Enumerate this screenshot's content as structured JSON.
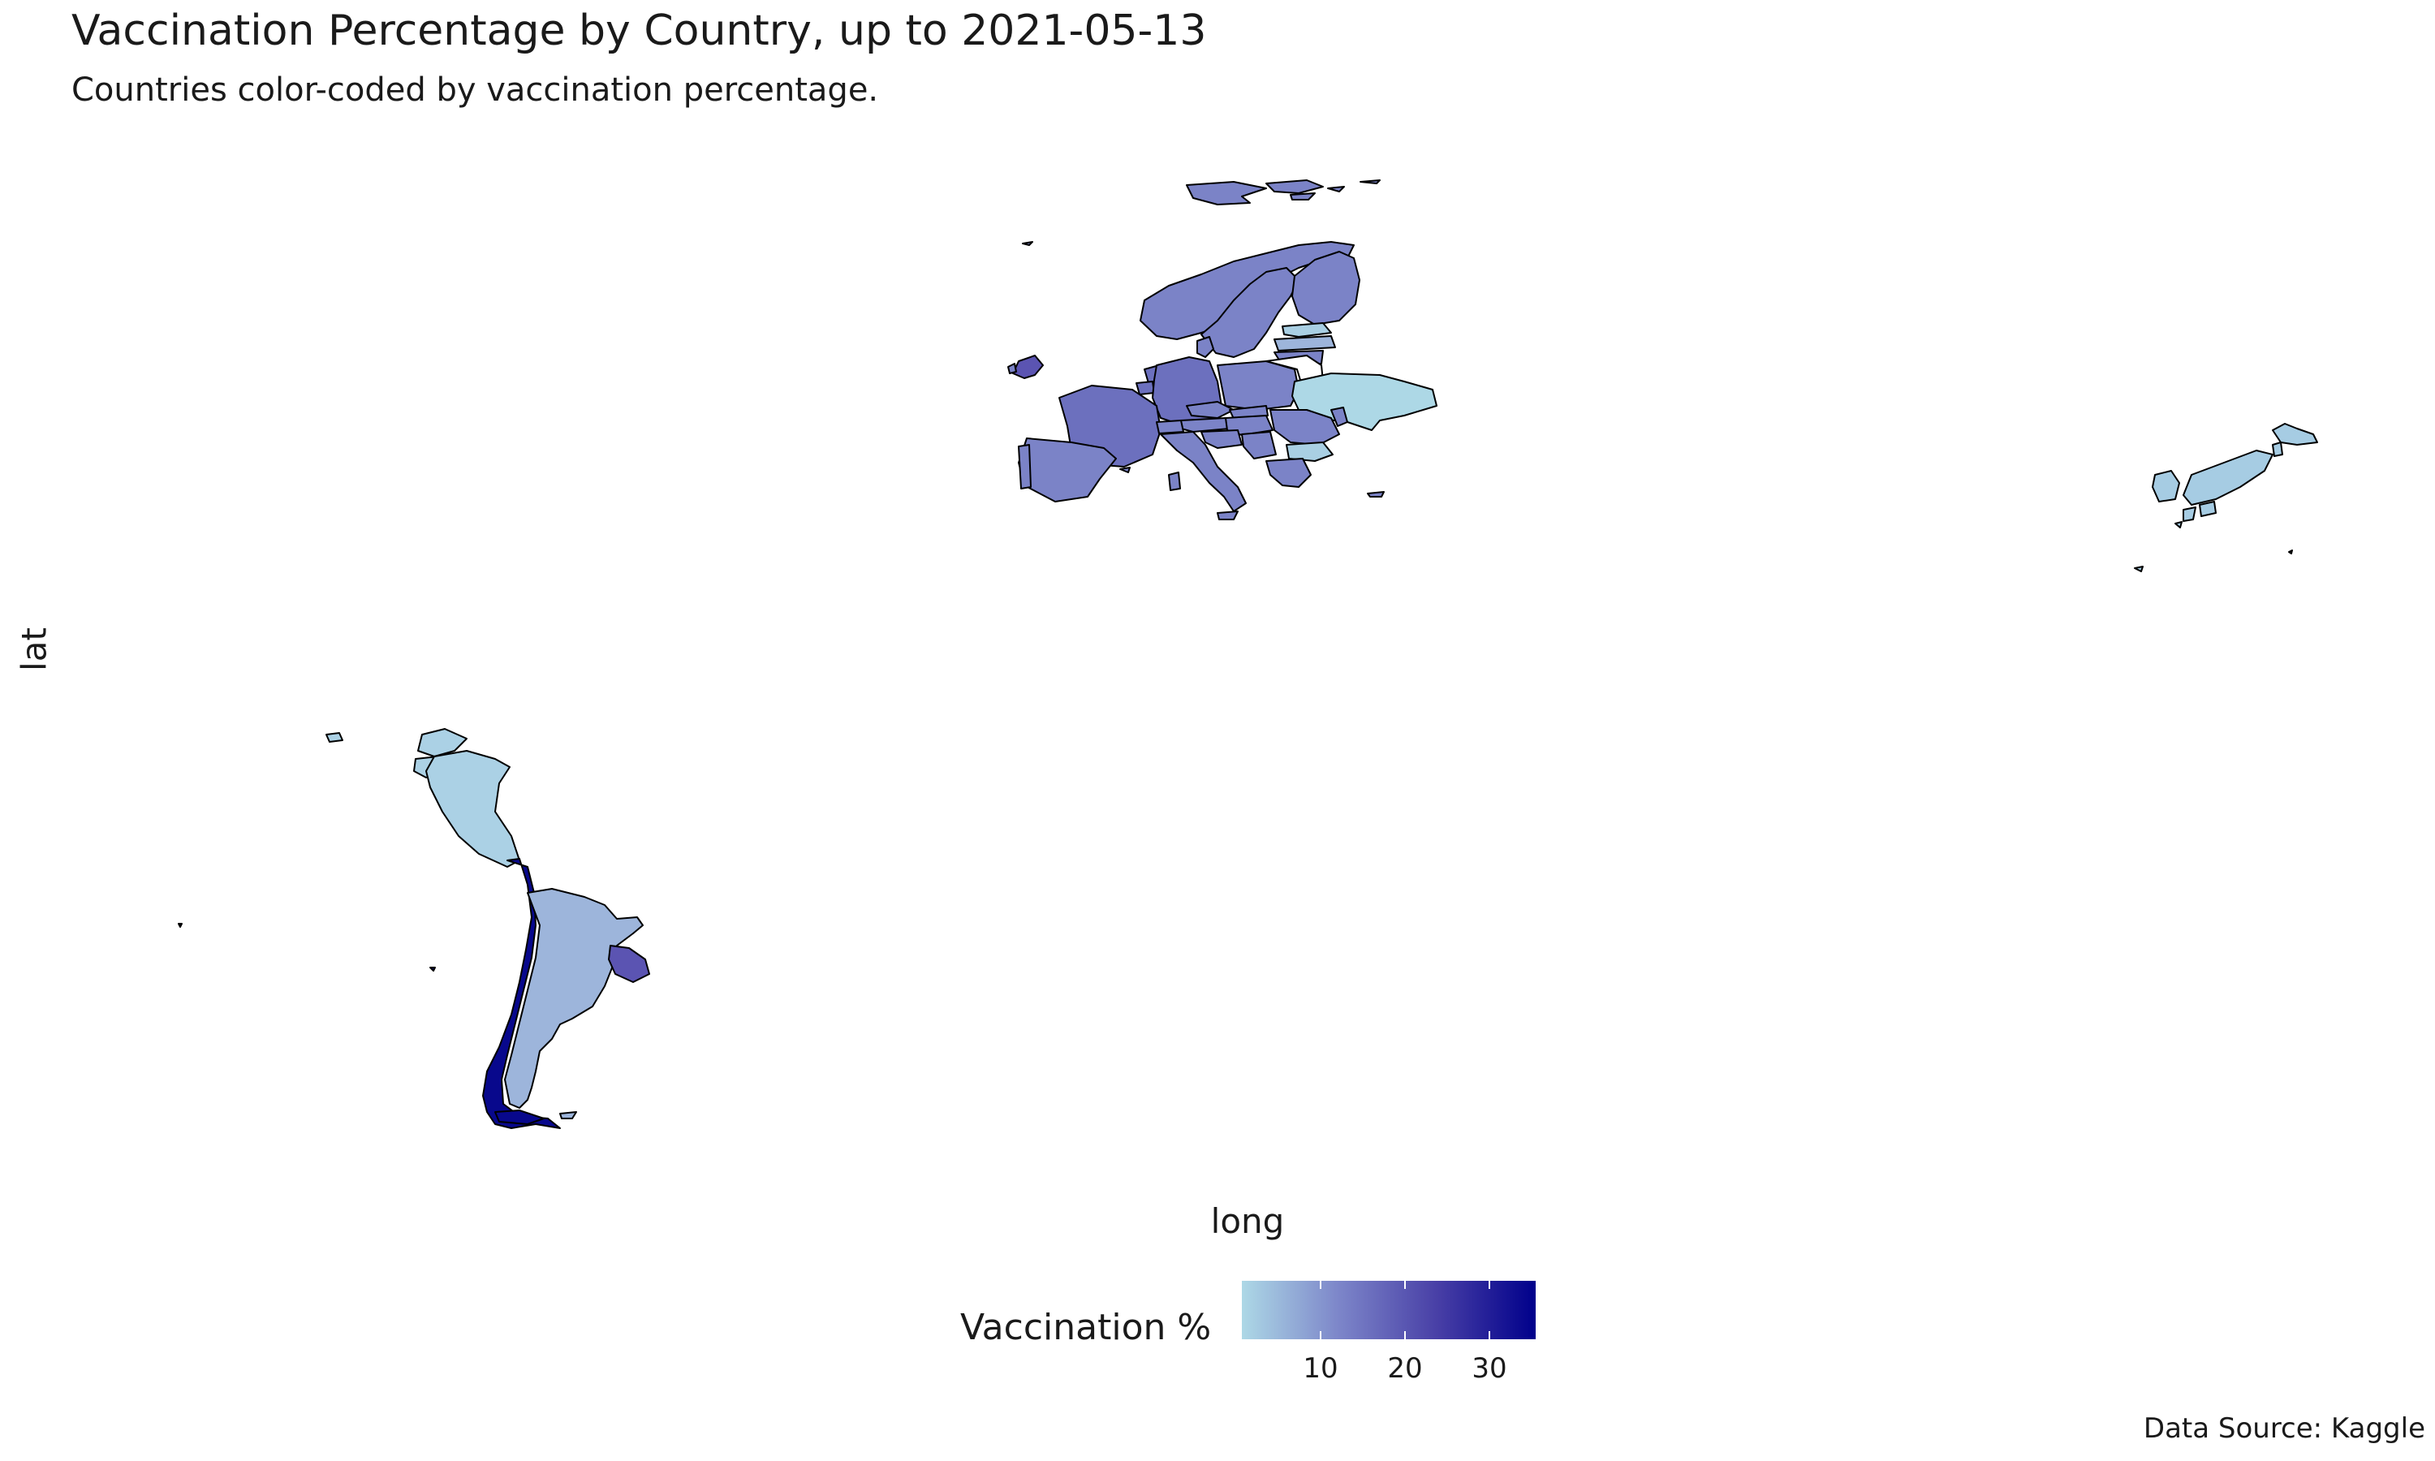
{
  "title": "Vaccination Percentage by Country, up to 2021-05-13",
  "subtitle": "Countries color-coded by vaccination percentage.",
  "axes": {
    "x_label": "long",
    "y_label": "lat"
  },
  "legend": {
    "title": "Vaccination %",
    "ticks": [
      "10",
      "20",
      "30"
    ],
    "range": [
      0,
      36
    ],
    "colors": [
      "#ADD8E6",
      "#00008B"
    ]
  },
  "caption": "Data Source: Kaggle",
  "map": {
    "regions": [
      "Europe",
      "Japan",
      "South America"
    ],
    "legend_placement": "bottom"
  },
  "country_colors": {
    "europe_main": "#7B83C7",
    "germany": "#6C70BE",
    "ukraine": "#ADD8E6",
    "bulgaria": "#A9CFE3",
    "japan": "#A6CCE3",
    "peru": "#ABD1E5",
    "chile": "#08088C",
    "argentina": "#9DB5DB",
    "uruguay": "#5B54B2"
  }
}
